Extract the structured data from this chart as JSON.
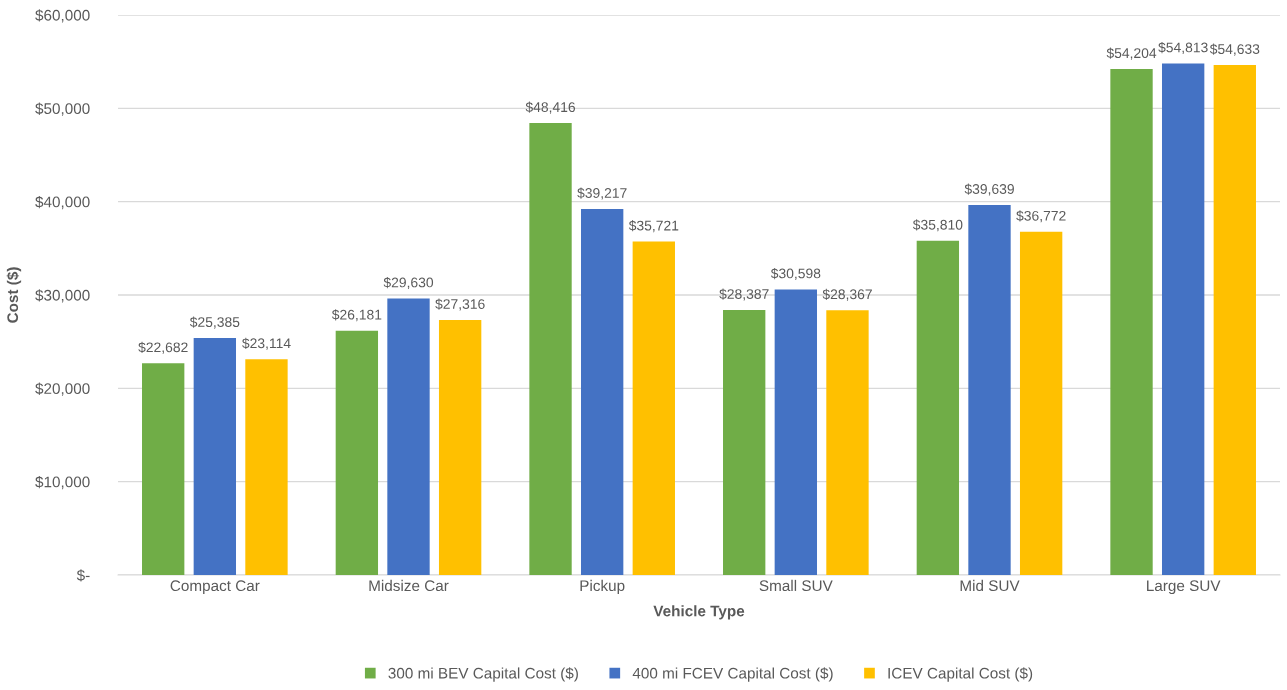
{
  "chart_data": {
    "type": "bar",
    "xlabel": "Vehicle Type",
    "ylabel": "Cost ($)",
    "categories": [
      "Compact Car",
      "Midsize Car",
      "Pickup",
      "Small SUV",
      "Mid SUV",
      "Large SUV"
    ],
    "series": [
      {
        "name": "300 mi BEV Capital Cost ($)",
        "color": "#70ad47",
        "values": [
          22682,
          26181,
          48416,
          28387,
          35810,
          54204
        ],
        "value_labels": [
          "$22,682",
          "$26,181",
          "$48,416",
          "$28,387",
          "$35,810",
          "$54,204"
        ]
      },
      {
        "name": "400 mi FCEV Capital Cost ($)",
        "color": "#4472c4",
        "values": [
          25385,
          29630,
          39217,
          30598,
          39639,
          54813
        ],
        "value_labels": [
          "$25,385",
          "$29,630",
          "$39,217",
          "$30,598",
          "$39,639",
          "$54,813"
        ]
      },
      {
        "name": "ICEV Capital Cost ($)",
        "color": "#ffc000",
        "values": [
          23114,
          27316,
          35721,
          28367,
          36772,
          54633
        ],
        "value_labels": [
          "$23,114",
          "$27,316",
          "$35,721",
          "$28,367",
          "$36,772",
          "$54,633"
        ]
      }
    ],
    "ylim": [
      0,
      60000
    ],
    "yticks": [
      {
        "value": 0,
        "label": "$-"
      },
      {
        "value": 10000,
        "label": "$10,000"
      },
      {
        "value": 20000,
        "label": "$20,000"
      },
      {
        "value": 30000,
        "label": "$30,000"
      },
      {
        "value": 40000,
        "label": "$40,000"
      },
      {
        "value": 50000,
        "label": "$50,000"
      },
      {
        "value": 60000,
        "label": "$60,000"
      }
    ],
    "grid": "y",
    "legend": "bottom"
  }
}
